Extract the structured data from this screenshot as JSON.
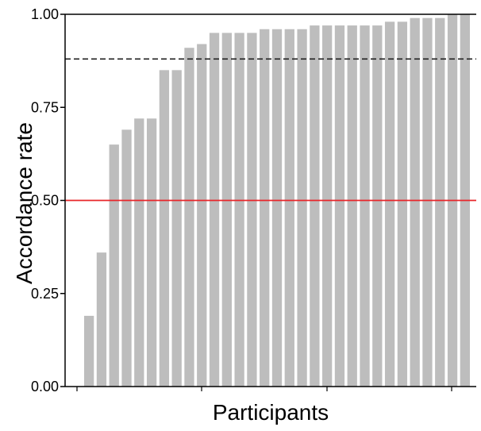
{
  "chart_data": {
    "type": "bar",
    "title": "",
    "xlabel": "Participants",
    "ylabel": "Accordance rate",
    "ylim": [
      0,
      1
    ],
    "yticks": [
      0.0,
      0.25,
      0.5,
      0.75,
      1.0
    ],
    "ytick_labels": [
      "0.00",
      "0.25",
      "0.50",
      "0.75",
      "1.00"
    ],
    "values": [
      0.19,
      0.36,
      0.65,
      0.69,
      0.72,
      0.72,
      0.85,
      0.85,
      0.91,
      0.92,
      0.95,
      0.95,
      0.95,
      0.95,
      0.96,
      0.96,
      0.96,
      0.96,
      0.97,
      0.97,
      0.97,
      0.97,
      0.97,
      0.97,
      0.98,
      0.98,
      0.99,
      0.99,
      0.99,
      1.0,
      1.0
    ],
    "grid": false,
    "legend": "none",
    "reference_lines": [
      {
        "value": 0.5,
        "style": "solid",
        "color": "#e8262a"
      },
      {
        "value": 0.88,
        "style": "dashed",
        "color": "#222222"
      }
    ],
    "colors": {
      "bar": "#bdbdbd",
      "axis": "#000000"
    }
  }
}
